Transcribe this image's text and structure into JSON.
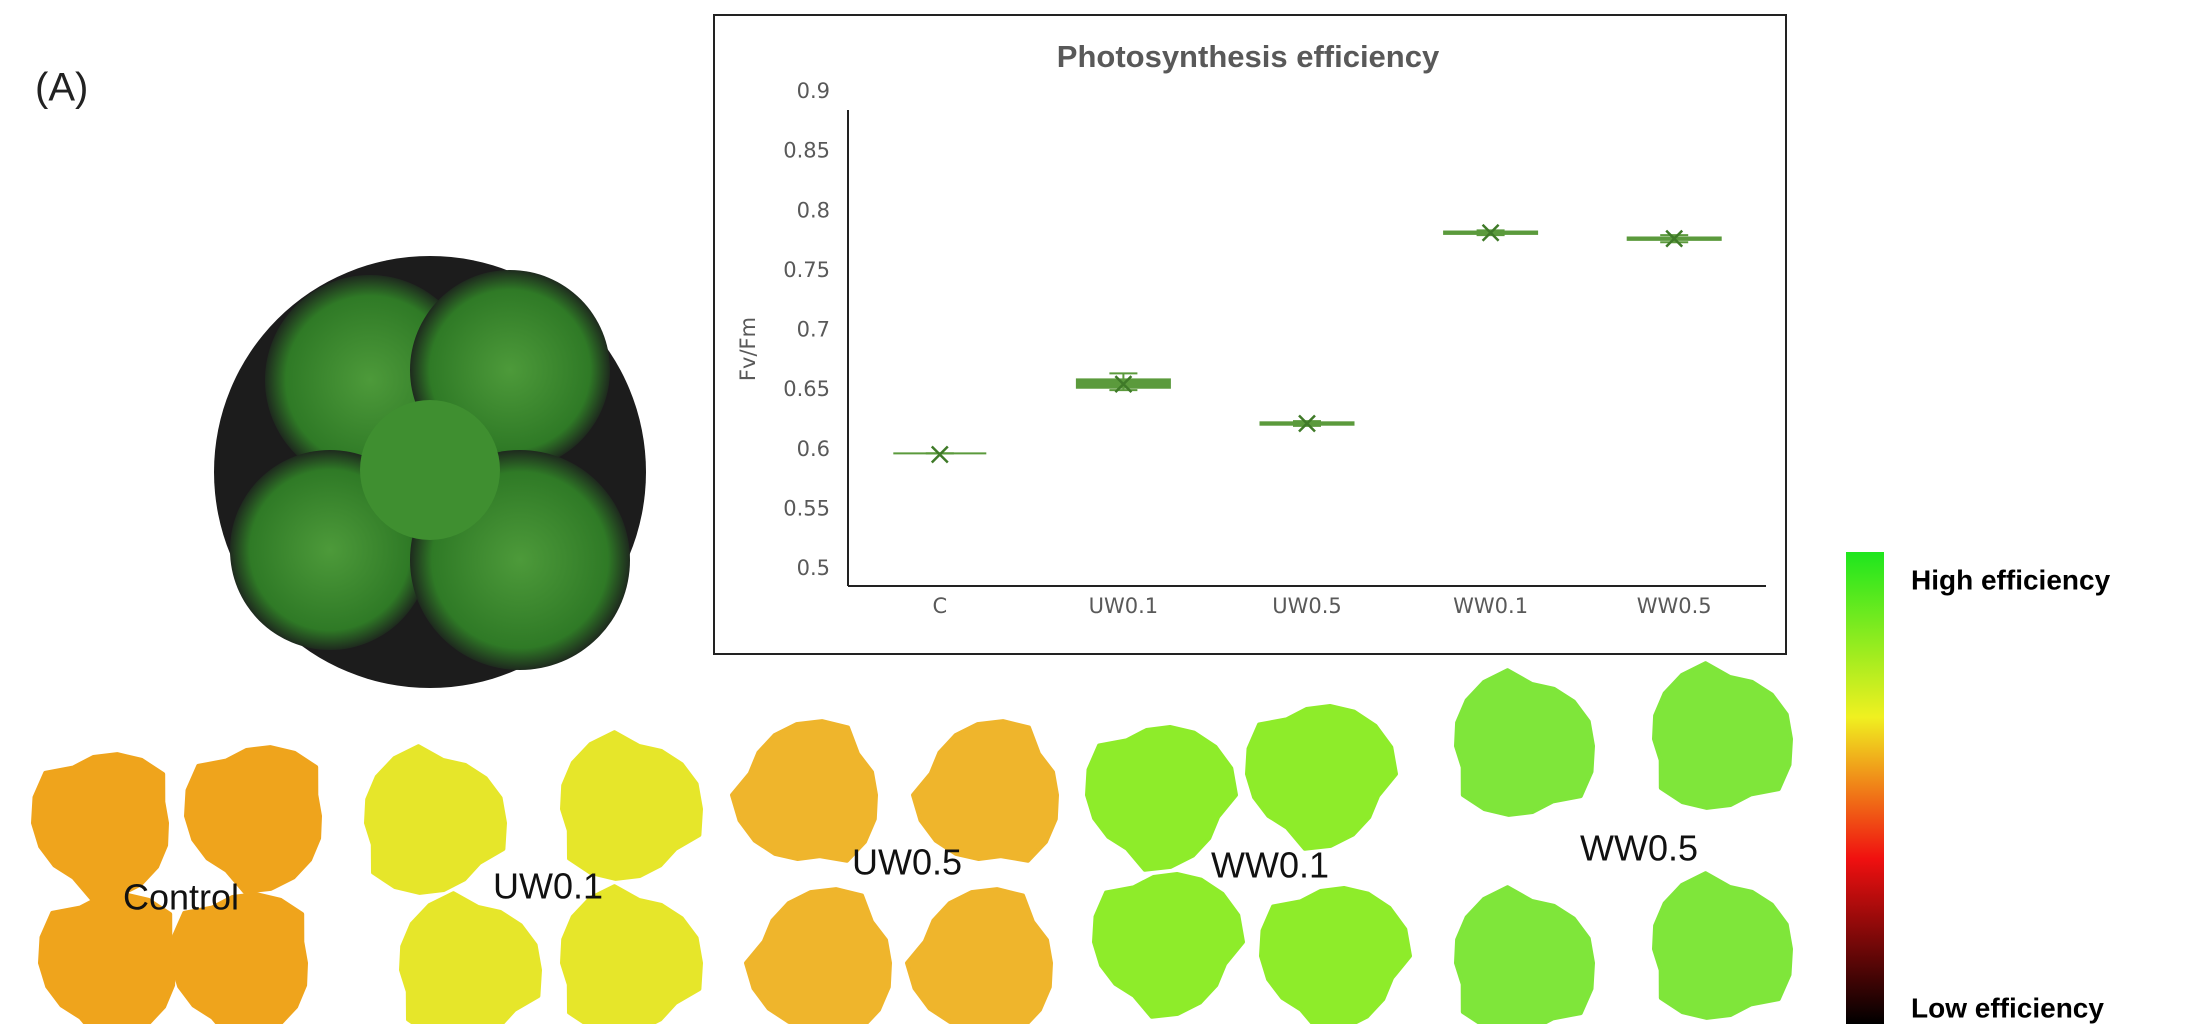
{
  "panel_label": "(A)",
  "plant_labels": [
    "Control",
    "UW0.1",
    "UW0.5",
    "WW0.1",
    "WW0.5"
  ],
  "colorbar": {
    "high_label": "High efficiency",
    "low_label": "Low efficiency"
  },
  "chart_data": {
    "type": "box",
    "title": "Photosynthesis efficiency",
    "y_label": "Fv/Fm",
    "categories": [
      "C",
      "UW0.1",
      "UW0.5",
      "WW0.1",
      "WW0.5"
    ],
    "min": [
      0.597,
      0.65,
      0.62,
      0.78,
      0.774
    ],
    "q1": [
      0.597,
      0.652,
      0.621,
      0.781,
      0.776
    ],
    "median": [
      0.597,
      0.655,
      0.622,
      0.782,
      0.777
    ],
    "q3": [
      0.597,
      0.659,
      0.623,
      0.783,
      0.778
    ],
    "max": [
      0.597,
      0.664,
      0.624,
      0.784,
      0.78
    ],
    "mean": [
      0.596,
      0.655,
      0.622,
      0.782,
      0.777
    ],
    "color": "#5b9a3c",
    "ylim": [
      0.5,
      0.9
    ],
    "yticks": [
      0.5,
      0.55,
      0.6,
      0.65,
      0.7,
      0.75,
      0.8,
      0.85,
      0.9
    ]
  }
}
